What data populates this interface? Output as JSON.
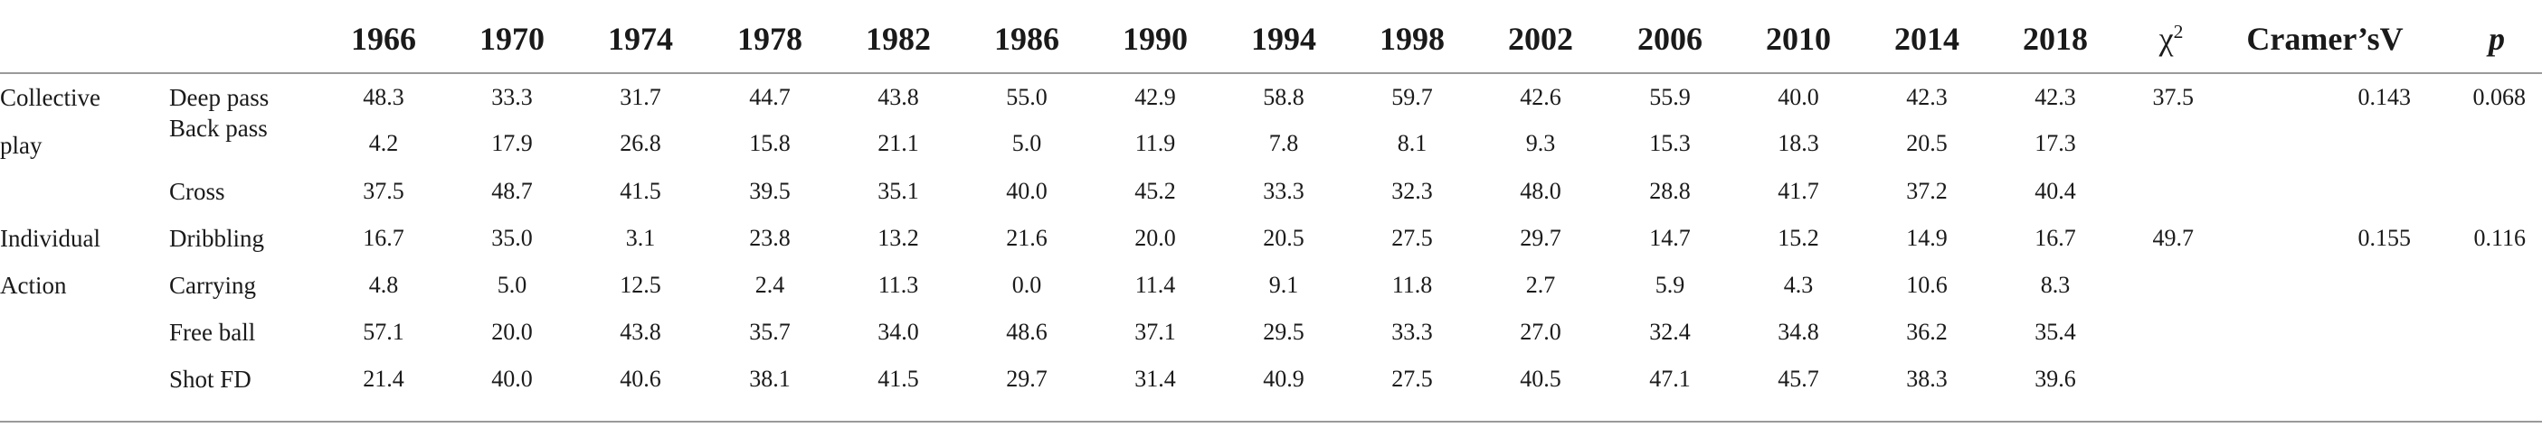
{
  "table": {
    "years": [
      "1966",
      "1970",
      "1974",
      "1978",
      "1982",
      "1986",
      "1990",
      "1994",
      "1998",
      "2002",
      "2006",
      "2010",
      "2014",
      "2018"
    ],
    "stat_headers": {
      "chi_symbol": "χ",
      "chi_sup": "2",
      "cramers": "Cramer’sV",
      "p": "p"
    },
    "groups": [
      {
        "label_line1": "Collective",
        "label_line2": "play"
      },
      {
        "label_line1": "Individual",
        "label_line2": "Action"
      }
    ],
    "rows": [
      {
        "label": "Deep pass",
        "values": [
          "48.3",
          "33.3",
          "31.7",
          "44.7",
          "43.8",
          "55.0",
          "42.9",
          "58.8",
          "59.7",
          "42.6",
          "55.9",
          "40.0",
          "42.3",
          "42.3"
        ]
      },
      {
        "label": "Back pass",
        "values": [
          "4.2",
          "17.9",
          "26.8",
          "15.8",
          "21.1",
          "5.0",
          "11.9",
          "7.8",
          "8.1",
          "9.3",
          "15.3",
          "18.3",
          "20.5",
          "17.3"
        ]
      },
      {
        "label": "Cross",
        "values": [
          "37.5",
          "48.7",
          "41.5",
          "39.5",
          "35.1",
          "40.0",
          "45.2",
          "33.3",
          "32.3",
          "48.0",
          "28.8",
          "41.7",
          "37.2",
          "40.4"
        ]
      },
      {
        "label": "Dribbling",
        "values": [
          "16.7",
          "35.0",
          "3.1",
          "23.8",
          "13.2",
          "21.6",
          "20.0",
          "20.5",
          "27.5",
          "29.7",
          "14.7",
          "15.2",
          "14.9",
          "16.7"
        ]
      },
      {
        "label": "Carrying",
        "values": [
          "4.8",
          "5.0",
          "12.5",
          "2.4",
          "11.3",
          "0.0",
          "11.4",
          "9.1",
          "11.8",
          "2.7",
          "5.9",
          "4.3",
          "10.6",
          "8.3"
        ]
      },
      {
        "label": "Free ball",
        "values": [
          "57.1",
          "20.0",
          "43.8",
          "35.7",
          "34.0",
          "48.6",
          "37.1",
          "29.5",
          "33.3",
          "27.0",
          "32.4",
          "34.8",
          "36.2",
          "35.4"
        ]
      },
      {
        "label": "Shot FD",
        "values": [
          "21.4",
          "40.0",
          "40.6",
          "38.1",
          "41.5",
          "29.7",
          "31.4",
          "40.9",
          "27.5",
          "40.5",
          "47.1",
          "45.7",
          "38.3",
          "39.6"
        ]
      }
    ],
    "stats": [
      {
        "chi2": "37.5",
        "cramers_v": "0.143",
        "p": "0.068"
      },
      {
        "chi2": "49.7",
        "cramers_v": "0.155",
        "p": "0.116"
      }
    ]
  }
}
